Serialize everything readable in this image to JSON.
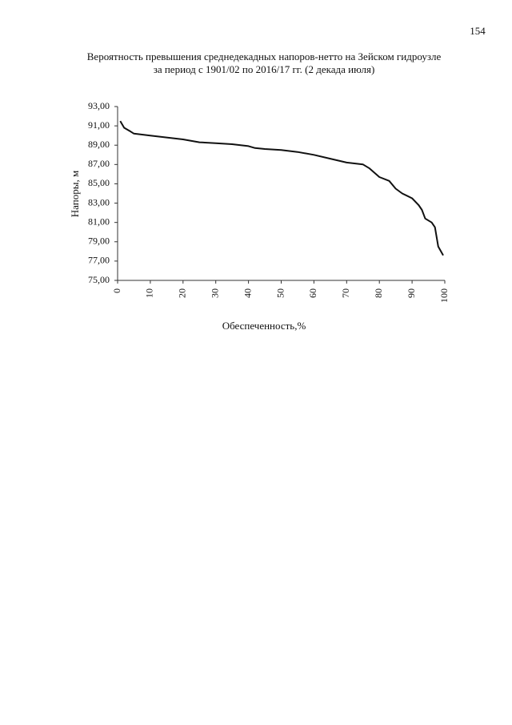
{
  "page_number": "154",
  "chart_data": {
    "type": "line",
    "title": "Вероятность превышения среднедекадных напоров-нетто на Зейском гидроузле",
    "subtitle": "за период с 1901/02 по 2016/17 гг. (2 декада июля)",
    "x_label": "Обеспеченность,%",
    "y_label": "Напоры, м",
    "x": [
      0.8,
      2,
      4,
      5,
      10,
      15,
      20,
      25,
      30,
      35,
      40,
      42,
      45,
      50,
      55,
      60,
      65,
      70,
      75,
      77,
      80,
      83,
      85,
      87,
      90,
      92,
      93,
      94,
      96,
      97,
      98,
      99.5
    ],
    "values": [
      91.5,
      90.8,
      90.4,
      90.2,
      90.0,
      89.8,
      89.6,
      89.3,
      89.2,
      89.1,
      88.9,
      88.7,
      88.6,
      88.5,
      88.3,
      88.0,
      87.6,
      87.2,
      87.0,
      86.6,
      85.7,
      85.3,
      84.5,
      84.0,
      83.5,
      82.8,
      82.3,
      81.4,
      81.0,
      80.5,
      78.5,
      77.6
    ],
    "color": "#111111",
    "xlim": [
      0,
      100
    ],
    "xticks": [
      0,
      10,
      20,
      30,
      40,
      50,
      60,
      70,
      80,
      90,
      100
    ],
    "ylim": [
      75,
      93
    ],
    "yticks": [
      {
        "value": 75,
        "label": "75,00"
      },
      {
        "value": 77,
        "label": "77,00"
      },
      {
        "value": 79,
        "label": "79,00"
      },
      {
        "value": 81,
        "label": "81,00"
      },
      {
        "value": 83,
        "label": "83,00"
      },
      {
        "value": 85,
        "label": "85,00"
      },
      {
        "value": 87,
        "label": "87,00"
      },
      {
        "value": 89,
        "label": "89,00"
      },
      {
        "value": 91,
        "label": "91,00"
      },
      {
        "value": 93,
        "label": "93,00"
      }
    ],
    "grid": false
  }
}
